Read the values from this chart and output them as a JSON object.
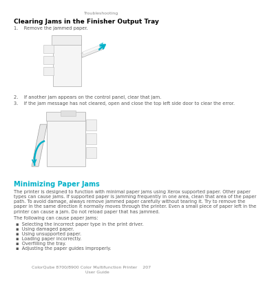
{
  "bg_color": "#ffffff",
  "header_text": "Troubleshooting",
  "header_color": "#888888",
  "title1": "Clearing Jams in the Finisher Output Tray",
  "title1_color": "#000000",
  "step1": "1.    Remove the jammed paper.",
  "step2": "2.    If another jam appears on the control panel, clear that jam.",
  "step3": "3.    If the jam message has not cleared, open and close the top left side door to clear the error.",
  "title2": "Minimizing Paper Jams",
  "title2_color": "#00b0c8",
  "para1": "The printer is designed to function with minimal paper jams using Xerox supported paper. Other paper\ntypes can cause jams. If supported paper is jamming frequently in one area, clean that area of the paper\npath. To avoid damage, always remove jammed paper carefully without tearing it. Try to remove the\npaper in the same direction it normally moves through the printer. Even a small piece of paper left in the\nprinter can cause a jam. Do not reload paper that has jammed.",
  "bullet_intro": "The following can cause paper jams:",
  "bullets": [
    "Selecting the incorrect paper type in the print driver.",
    "Using damaged paper.",
    "Using unsupported paper.",
    "Loading paper incorrectly.",
    "Overfilling the tray.",
    "Adjusting the paper guides improperly."
  ],
  "footer_left": "ColorQube 8700/8900 Color Multifunction Printer    207",
  "footer_right": "User Guide",
  "footer_color": "#888888",
  "text_color": "#555555",
  "title_fontsize": 6.5,
  "body_fontsize": 4.8,
  "bullet_fontsize": 4.8,
  "header_fontsize": 4.5,
  "footer_fontsize": 4.5,
  "cyan_color": "#00b0c8",
  "light_gray": "#f5f5f5",
  "mid_gray": "#e8e8e8",
  "dark_gray": "#aaaaaa"
}
